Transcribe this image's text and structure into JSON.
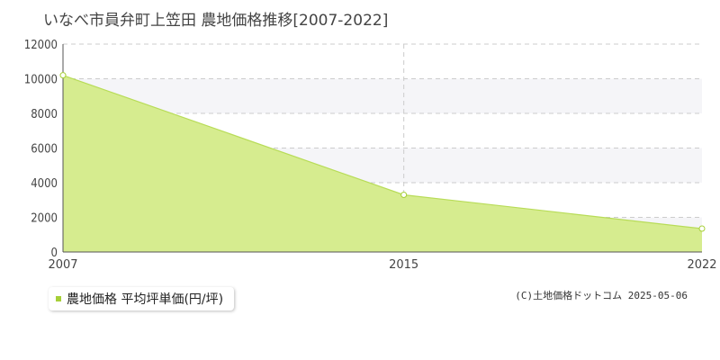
{
  "title": "いなべ市員弁町上笠田 農地価格推移[2007-2022]",
  "legend": {
    "label": "農地価格 平均坪単価(円/坪)"
  },
  "copyright": "(C)土地価格ドットコム 2025-05-06",
  "colors": {
    "fill": "#d6ec8f",
    "line": "#b8dc58",
    "grid": "#cccccc",
    "band": "#f5f5f8",
    "marker": "#a6cf38"
  },
  "chart_data": {
    "type": "area",
    "x": [
      2007,
      2015,
      2022
    ],
    "values": [
      10200,
      3300,
      1350
    ],
    "xticks": [
      "2007",
      "2015",
      "2022"
    ],
    "yticks": [
      0,
      2000,
      4000,
      6000,
      8000,
      10000,
      12000
    ],
    "xlim": [
      2007,
      2022
    ],
    "ylim": [
      0,
      12000
    ],
    "grid": true,
    "legend_position": "bottom-left"
  }
}
